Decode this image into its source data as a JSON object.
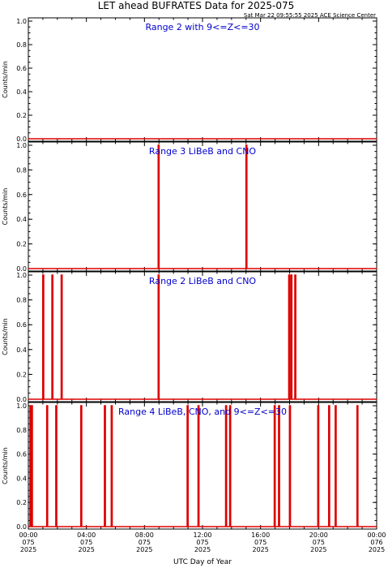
{
  "header": {
    "title": "LET ahead BUFRATES Data for 2025-075",
    "timestamp": "Sat Mar 22 09:55:55 2025 ACE Science Center"
  },
  "colors": {
    "trace": "#dd0000",
    "panel_title": "#0000cc",
    "axes": "#000000"
  },
  "chart_data": [
    {
      "type": "line",
      "title": "Range 2 with 9<=Z<=30",
      "ylabel": "Counts/min",
      "ylim": [
        0,
        1.0
      ],
      "xlim_hours": [
        0,
        24
      ],
      "spikes_hours": []
    },
    {
      "type": "line",
      "title": "Range 3 LiBeB and CNO",
      "ylabel": "Counts/min",
      "ylim": [
        0,
        1.0
      ],
      "xlim_hours": [
        0,
        24
      ],
      "spikes_hours": [
        8.95,
        15.0
      ]
    },
    {
      "type": "line",
      "title": "Range 2 LiBeB and CNO",
      "ylabel": "Counts/min",
      "ylim": [
        0,
        1.0
      ],
      "xlim_hours": [
        0,
        24
      ],
      "spikes_hours": [
        1.0,
        1.63,
        2.27,
        8.95,
        17.95,
        18.1,
        18.37
      ]
    },
    {
      "type": "line",
      "title": "Range 4 LiBeB, CNO, and 9<=Z<=30",
      "ylabel": "Counts/min",
      "ylim": [
        0,
        1.0
      ],
      "xlim_hours": [
        0,
        24
      ],
      "spikes_hours": [
        0.12,
        0.22,
        1.27,
        1.9,
        3.62,
        5.25,
        5.72,
        10.95,
        11.7,
        13.6,
        13.88,
        16.95,
        17.25,
        18.0,
        19.95,
        20.7,
        21.15,
        22.65
      ]
    }
  ],
  "y_ticks": [
    "0.0",
    "0.2",
    "0.4",
    "0.6",
    "0.8",
    "1.0"
  ],
  "x_ticks": [
    {
      "time": "00:00",
      "doy": "075",
      "year": "2025"
    },
    {
      "time": "04:00",
      "doy": "075",
      "year": "2025"
    },
    {
      "time": "08:00",
      "doy": "075",
      "year": "2025"
    },
    {
      "time": "12:00",
      "doy": "075",
      "year": "2025"
    },
    {
      "time": "16:00",
      "doy": "075",
      "year": "2025"
    },
    {
      "time": "20:00",
      "doy": "075",
      "year": "2025"
    },
    {
      "time": "00:00",
      "doy": "076",
      "year": "2025"
    }
  ],
  "xlabel": "UTC Day of Year"
}
